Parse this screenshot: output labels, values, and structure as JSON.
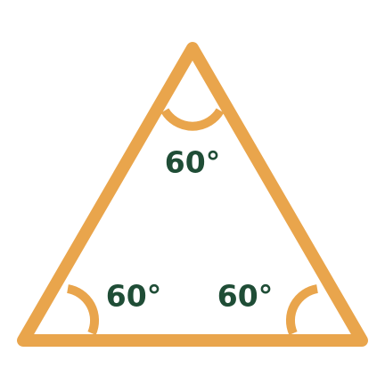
{
  "colors": {
    "triangle_stroke": "#E9A54C",
    "arc_stroke": "#E9A54C",
    "label_text": "#1F4D36",
    "background": "#FFFFFF"
  },
  "angles": {
    "top": "60°",
    "bottom_left": "60°",
    "bottom_right": "60°"
  }
}
